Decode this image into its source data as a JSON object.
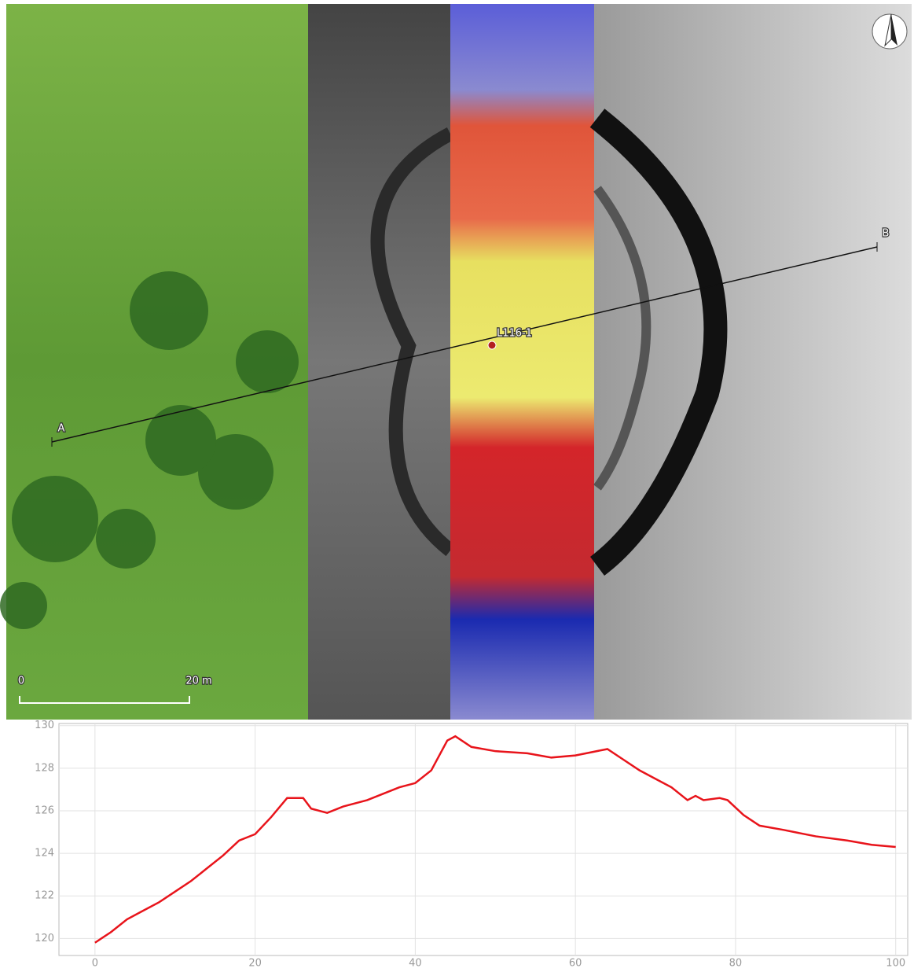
{
  "map": {
    "points": [
      {
        "label": "A"
      },
      {
        "label": "B"
      }
    ],
    "site": {
      "label": "L116-1"
    },
    "scale_bar": {
      "start": "0",
      "end": "20 m"
    }
  },
  "chart_data": {
    "type": "line",
    "x": [
      0,
      2,
      4,
      6,
      8,
      10,
      12,
      14,
      16,
      18,
      20,
      22,
      24,
      26,
      27,
      29,
      31,
      34,
      36,
      38,
      40,
      42,
      44,
      45,
      47,
      50,
      54,
      57,
      60,
      64,
      66,
      68,
      70,
      72,
      74,
      75,
      76,
      78,
      79,
      81,
      83,
      86,
      90,
      94,
      97,
      100
    ],
    "series": [
      {
        "color": "#e8141b",
        "values": [
          119.8,
          120.3,
          120.9,
          121.3,
          121.7,
          122.2,
          122.7,
          123.3,
          123.9,
          124.6,
          124.9,
          125.7,
          126.6,
          126.6,
          126.1,
          125.9,
          126.2,
          126.5,
          126.8,
          127.1,
          127.3,
          127.9,
          129.3,
          129.5,
          129.0,
          128.8,
          128.7,
          128.5,
          128.6,
          128.9,
          128.4,
          127.9,
          127.5,
          127.1,
          126.5,
          126.7,
          126.5,
          126.6,
          126.5,
          125.8,
          125.3,
          125.1,
          124.8,
          124.6,
          124.4,
          124.3
        ]
      }
    ],
    "xlim": [
      -4.5,
      101.5
    ],
    "ylim": [
      119.2,
      130.1
    ],
    "xticks": [
      0,
      20,
      40,
      60,
      80,
      100
    ],
    "yticks": [
      120,
      122,
      124,
      126,
      128,
      130
    ],
    "grid": true
  }
}
